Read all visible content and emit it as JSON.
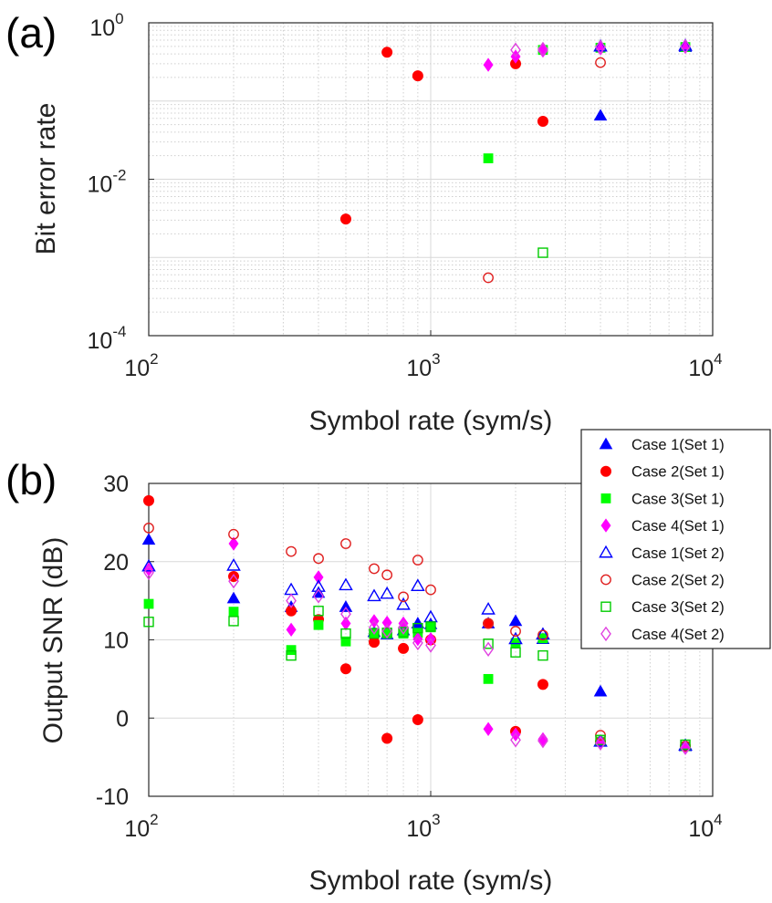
{
  "colors": {
    "case1": "#0000ff",
    "case2": "#ff0000",
    "case3": "#00ff00",
    "case4": "#ff00ff",
    "case1_open": "#0000ff",
    "case2_open": "#e02020",
    "case3_open": "#00cc00",
    "case4_open": "#e040e0"
  },
  "legend": {
    "entries": [
      {
        "label": "Case 1(Set 1)",
        "marker": "triangle",
        "filled": true,
        "color_key": "case1"
      },
      {
        "label": "Case 2(Set 1)",
        "marker": "circle",
        "filled": true,
        "color_key": "case2"
      },
      {
        "label": "Case 3(Set 1)",
        "marker": "square",
        "filled": true,
        "color_key": "case3"
      },
      {
        "label": "Case 4(Set 1)",
        "marker": "diamond",
        "filled": true,
        "color_key": "case4"
      },
      {
        "label": "Case 1(Set 2)",
        "marker": "triangle",
        "filled": false,
        "color_key": "case1_open"
      },
      {
        "label": "Case 2(Set 2)",
        "marker": "circle",
        "filled": false,
        "color_key": "case2_open"
      },
      {
        "label": "Case 3(Set 2)",
        "marker": "square",
        "filled": false,
        "color_key": "case3_open"
      },
      {
        "label": "Case 4(Set 2)",
        "marker": "diamond",
        "filled": false,
        "color_key": "case4_open"
      }
    ]
  },
  "chart_data": [
    {
      "panel_label": "(a)",
      "type": "scatter",
      "xscale": "log",
      "yscale": "log",
      "xlabel": "Symbol rate (sym/s)",
      "ylabel": "Bit error rate",
      "xlim": [
        100,
        10000
      ],
      "ylim": [
        0.0001,
        1
      ],
      "xticks": [
        {
          "base": "10",
          "exp": "2",
          "value": 100
        },
        {
          "base": "10",
          "exp": "3",
          "value": 1000
        },
        {
          "base": "10",
          "exp": "4",
          "value": 10000
        }
      ],
      "yticks": [
        {
          "base": "10",
          "exp": "0",
          "value": 1
        },
        {
          "base": "10",
          "exp": "-2",
          "value": 0.01
        },
        {
          "base": "10",
          "exp": "-4",
          "value": 0.0001
        }
      ],
      "grid": true,
      "series": [
        {
          "name": "Case 1(Set 1)",
          "color_key": "case1",
          "marker": "triangle",
          "filled": true,
          "x": [
            4000,
            8000
          ],
          "y": [
            0.065,
            0.49
          ]
        },
        {
          "name": "Case 2(Set 1)",
          "color_key": "case2",
          "marker": "circle",
          "filled": true,
          "x": [
            500,
            700,
            900,
            2000,
            2500
          ],
          "y": [
            0.0031,
            0.42,
            0.21,
            0.3,
            0.055
          ]
        },
        {
          "name": "Case 3(Set 1)",
          "color_key": "case3",
          "marker": "square",
          "filled": true,
          "x": [
            1600,
            2500,
            4000,
            8000
          ],
          "y": [
            0.0185,
            0.45,
            0.48,
            0.49
          ]
        },
        {
          "name": "Case 4(Set 1)",
          "color_key": "case4",
          "marker": "diamond",
          "filled": true,
          "x": [
            1600,
            2000,
            2500,
            4000,
            8000
          ],
          "y": [
            0.29,
            0.37,
            0.44,
            0.47,
            0.49
          ]
        },
        {
          "name": "Case 1(Set 2)",
          "color_key": "case1_open",
          "marker": "triangle",
          "filled": false,
          "x": [
            4000,
            8000
          ],
          "y": [
            0.5,
            0.51
          ]
        },
        {
          "name": "Case 2(Set 2)",
          "color_key": "case2_open",
          "marker": "circle",
          "filled": false,
          "x": [
            1600,
            4000
          ],
          "y": [
            0.00055,
            0.31
          ]
        },
        {
          "name": "Case 3(Set 2)",
          "color_key": "case3_open",
          "marker": "square",
          "filled": false,
          "x": [
            2500
          ],
          "y": [
            0.00115
          ]
        },
        {
          "name": "Case 4(Set 2)",
          "color_key": "case4_open",
          "marker": "diamond",
          "filled": false,
          "x": [
            2000,
            2500,
            4000,
            8000
          ],
          "y": [
            0.45,
            0.46,
            0.49,
            0.5
          ]
        }
      ]
    },
    {
      "panel_label": "(b)",
      "type": "scatter",
      "xscale": "log",
      "yscale": "linear",
      "xlabel": "Symbol rate (sym/s)",
      "ylabel": "Output SNR (dB)",
      "xlim": [
        100,
        10000
      ],
      "ylim": [
        -10,
        30
      ],
      "xticks": [
        {
          "base": "10",
          "exp": "2",
          "value": 100
        },
        {
          "base": "10",
          "exp": "3",
          "value": 1000
        },
        {
          "base": "10",
          "exp": "4",
          "value": 10000
        }
      ],
      "yticks": [
        {
          "label": "30",
          "value": 30
        },
        {
          "label": "20",
          "value": 20
        },
        {
          "label": "10",
          "value": 10
        },
        {
          "label": "0",
          "value": 0
        },
        {
          "label": "-10",
          "value": -10
        }
      ],
      "grid": true,
      "legend_position": "top-right",
      "series": [
        {
          "name": "Case 1(Set 1)",
          "color_key": "case1",
          "marker": "triangle",
          "filled": true,
          "x": [
            100,
            200,
            320,
            400,
            500,
            630,
            700,
            800,
            900,
            1000,
            1600,
            2000,
            2500,
            4000,
            8000
          ],
          "y": [
            22.8,
            15.3,
            14.2,
            16.0,
            14.2,
            11.0,
            10.7,
            11.2,
            12.1,
            12.0,
            12.1,
            12.4,
            10.1,
            3.4,
            -3.6
          ]
        },
        {
          "name": "Case 2(Set 1)",
          "color_key": "case2",
          "marker": "circle",
          "filled": true,
          "x": [
            100,
            200,
            320,
            400,
            500,
            630,
            700,
            800,
            900,
            1000,
            1600,
            2000,
            2500,
            4000,
            8000
          ],
          "y": [
            27.8,
            18.1,
            13.7,
            12.6,
            6.3,
            9.7,
            -2.6,
            8.9,
            -0.2,
            10.0,
            12.1,
            -1.7,
            4.3,
            -3.0,
            -3.6
          ]
        },
        {
          "name": "Case 3(Set 1)",
          "color_key": "case3",
          "marker": "square",
          "filled": true,
          "x": [
            100,
            200,
            320,
            400,
            500,
            630,
            700,
            800,
            900,
            1000,
            1600,
            2000,
            2500,
            4000,
            8000
          ],
          "y": [
            14.6,
            13.6,
            8.7,
            11.9,
            9.8,
            10.9,
            10.8,
            10.8,
            10.9,
            11.6,
            5.0,
            9.6,
            10.2,
            -3.0,
            -3.6
          ]
        },
        {
          "name": "Case 4(Set 1)",
          "color_key": "case4",
          "marker": "diamond",
          "filled": true,
          "x": [
            100,
            200,
            320,
            400,
            500,
            630,
            700,
            800,
            900,
            1000,
            1600,
            2000,
            2500,
            4000,
            8000
          ],
          "y": [
            19.0,
            22.3,
            11.3,
            18.0,
            12.1,
            12.4,
            12.2,
            12.1,
            10.1,
            10.1,
            -1.4,
            -2.1,
            -2.7,
            -3.0,
            -3.6
          ]
        },
        {
          "name": "Case 1(Set 2)",
          "color_key": "case1_open",
          "marker": "triangle",
          "filled": false,
          "x": [
            100,
            200,
            320,
            400,
            500,
            630,
            700,
            800,
            900,
            1000,
            1600,
            2000,
            2500,
            4000,
            8000
          ],
          "y": [
            19.4,
            19.5,
            16.4,
            16.8,
            17.0,
            15.6,
            15.9,
            14.5,
            16.9,
            12.9,
            13.9,
            10.1,
            10.7,
            -3.0,
            -3.5
          ]
        },
        {
          "name": "Case 2(Set 2)",
          "color_key": "case2_open",
          "marker": "circle",
          "filled": false,
          "x": [
            100,
            200,
            320,
            400,
            500,
            630,
            700,
            800,
            900,
            1000,
            1600,
            2000,
            2500,
            4000,
            8000
          ],
          "y": [
            24.3,
            23.5,
            21.3,
            20.4,
            22.3,
            19.1,
            18.3,
            15.5,
            20.2,
            16.4,
            12.1,
            11.1,
            10.6,
            -2.2,
            -3.6
          ]
        },
        {
          "name": "Case 3(Set 2)",
          "color_key": "case3_open",
          "marker": "square",
          "filled": false,
          "x": [
            100,
            200,
            320,
            400,
            500,
            630,
            700,
            800,
            900,
            1000,
            1600,
            2000,
            2500,
            4000,
            8000
          ],
          "y": [
            12.3,
            12.4,
            8.0,
            13.7,
            10.8,
            10.8,
            10.9,
            11.0,
            11.5,
            11.7,
            9.5,
            8.4,
            8.0,
            -2.8,
            -3.4
          ]
        },
        {
          "name": "Case 4(Set 2)",
          "color_key": "case4_open",
          "marker": "diamond",
          "filled": false,
          "x": [
            100,
            200,
            320,
            400,
            500,
            630,
            700,
            800,
            900,
            1000,
            1600,
            2000,
            2500,
            4000,
            8000
          ],
          "y": [
            18.6,
            17.5,
            15.0,
            15.6,
            13.3,
            11.6,
            11.1,
            11.6,
            9.6,
            9.3,
            8.8,
            -2.8,
            -2.9,
            -3.2,
            -3.8
          ]
        }
      ]
    }
  ]
}
